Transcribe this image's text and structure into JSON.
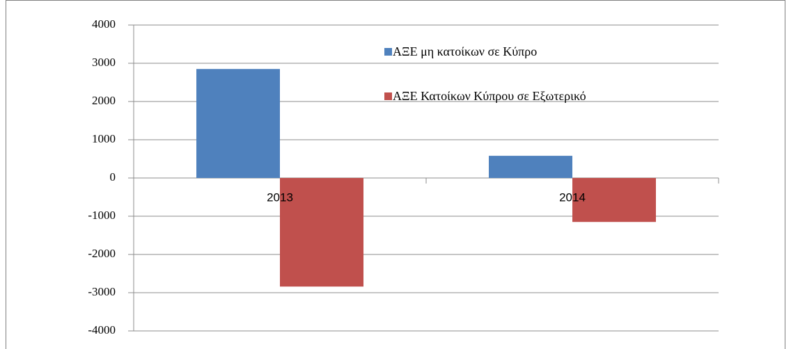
{
  "chart_data": {
    "type": "bar",
    "categories": [
      "2013",
      "2014"
    ],
    "series": [
      {
        "name": "ΑΞΕ μη κατοίκων σε Κύπρο",
        "color": "#4f81bd",
        "values": [
          2850,
          580
        ]
      },
      {
        "name": "ΑΞΕ Κατοίκων Κύπρου σε Εξωτερικό",
        "color": "#c0504d",
        "values": [
          -2840,
          -1150
        ]
      }
    ],
    "ylim": [
      -4000,
      4000
    ],
    "yticks": [
      -4000,
      -3000,
      -2000,
      -1000,
      0,
      1000,
      2000,
      3000,
      4000
    ],
    "grid": true,
    "legend": "top-right"
  }
}
